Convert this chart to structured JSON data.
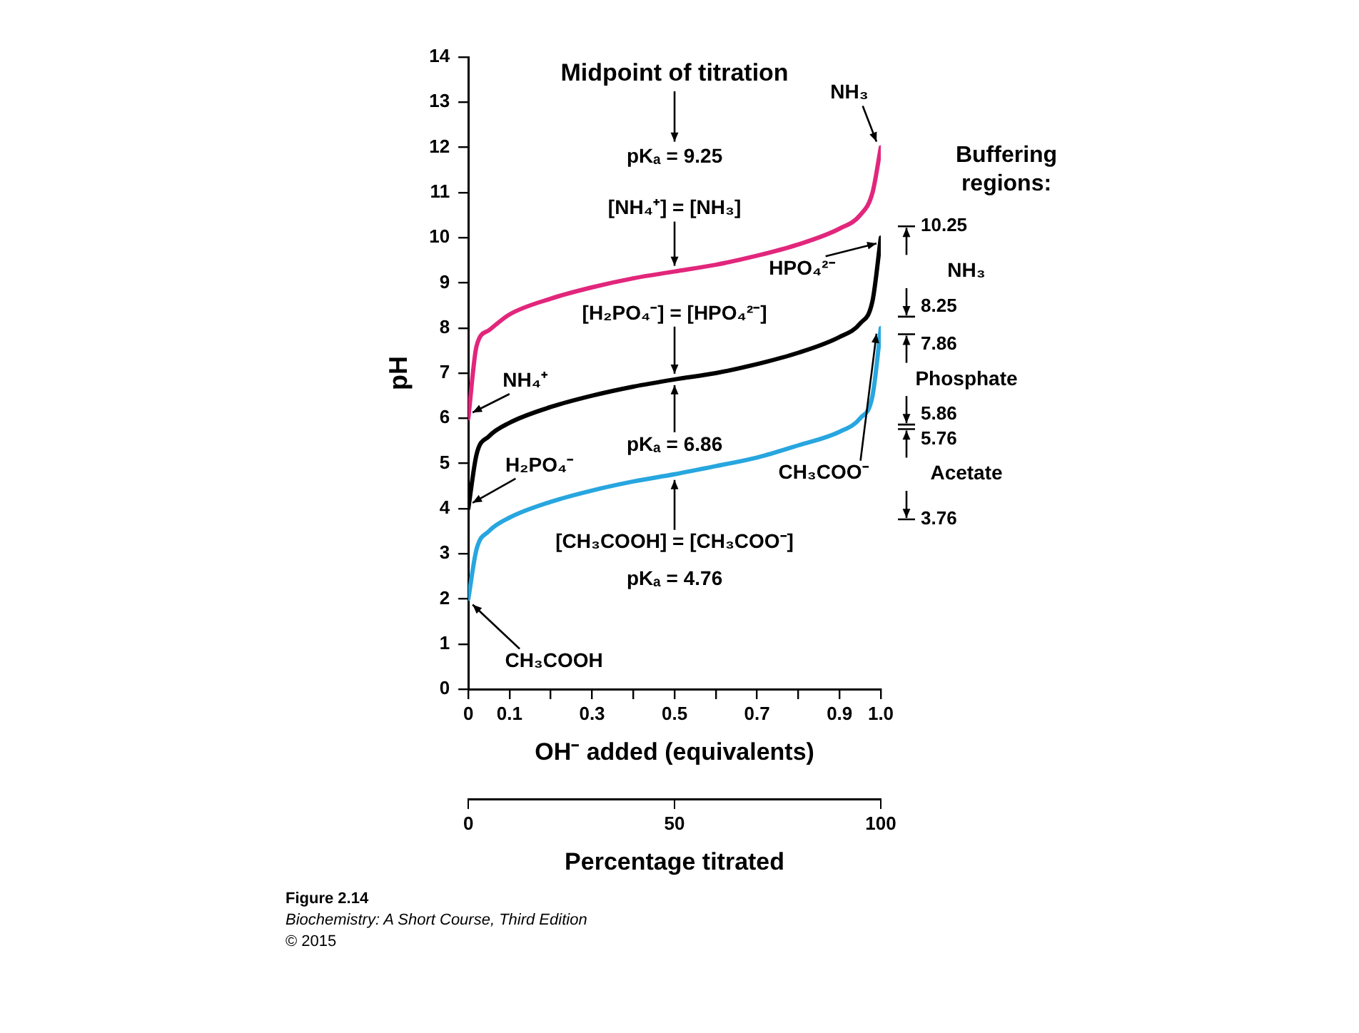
{
  "chart_data": {
    "type": "line",
    "xlabel": "OH⁻ added (equivalents)",
    "ylabel": "pH",
    "x2label": "Percentage titrated",
    "x": [
      0,
      0.02,
      0.05,
      0.1,
      0.2,
      0.3,
      0.4,
      0.5,
      0.6,
      0.7,
      0.8,
      0.9,
      0.95,
      0.98,
      1.0
    ],
    "series": [
      {
        "color": "#e2267c",
        "values": [
          6.0,
          7.6,
          7.95,
          8.3,
          8.65,
          8.9,
          9.1,
          9.25,
          9.4,
          9.6,
          9.85,
          10.2,
          10.5,
          11.0,
          12.0
        ]
      },
      {
        "color": "#000000",
        "values": [
          4.0,
          5.2,
          5.6,
          5.9,
          6.25,
          6.5,
          6.7,
          6.86,
          7.0,
          7.2,
          7.45,
          7.8,
          8.1,
          8.6,
          10.0
        ]
      },
      {
        "color": "#27a6df",
        "values": [
          2.0,
          3.1,
          3.5,
          3.8,
          4.15,
          4.4,
          4.6,
          4.76,
          4.94,
          5.13,
          5.4,
          5.7,
          6.0,
          6.5,
          8.0
        ]
      }
    ],
    "xlim": [
      0,
      1
    ],
    "xticks": [
      0,
      0.1,
      {
        "value": 0.2,
        "label": null
      },
      0.3,
      {
        "value": 0.4,
        "label": null
      },
      0.5,
      {
        "value": 0.6,
        "label": null
      },
      0.7,
      {
        "value": 0.8,
        "label": null
      },
      0.9,
      {
        "value": 1,
        "label": "1.0"
      }
    ],
    "x2lim": [
      0,
      100
    ],
    "x2ticks": [
      0,
      50,
      100
    ],
    "ylim": [
      0,
      14
    ],
    "yticks": [
      0,
      1,
      2,
      3,
      4,
      5,
      6,
      7,
      8,
      9,
      10,
      11,
      12,
      13,
      14
    ],
    "grid": false,
    "legend": false,
    "marker": "none",
    "line_style": "solid",
    "annotations": [
      {
        "text": "NH₃",
        "x": 1,
        "y": 12
      },
      {
        "text": "HPO₄²⁻",
        "x": 1,
        "y": 10
      },
      {
        "text": "NH₄⁺",
        "x": 0,
        "y": 6
      },
      {
        "text": "H₂PO₄⁻",
        "x": 0,
        "y": 4
      },
      {
        "text": "CH₃COOH",
        "x": 0,
        "y": 2
      },
      {
        "text": "CH₃COO⁻",
        "x": 1,
        "y": 8
      },
      {
        "text": "[NH₄⁺] = [NH₃]",
        "x": 0.5,
        "y": 9.25
      },
      {
        "text": "[H₂PO₄⁻] = [HPO₄²⁻]",
        "x": 0.5,
        "y": 6.86
      },
      {
        "text": "pKₐ = 6.86",
        "x": 0.5,
        "y": 6.86
      },
      {
        "text": "[CH₃COOH] = [CH₃COO⁻]",
        "x": 0.5,
        "y": 4.76
      },
      "10.25",
      "8.25",
      "7.86",
      "5.86",
      "5.76",
      "3.76",
      "Midpoint of titration",
      "pKₐ = 9.25",
      "pKₐ = 4.76",
      "Buffering regions:",
      "NH₃",
      "Phosphate",
      "Acetate",
      "Figure 2.14",
      "Biochemistry: A Short Course, Third Edition",
      "© 2015"
    ]
  }
}
